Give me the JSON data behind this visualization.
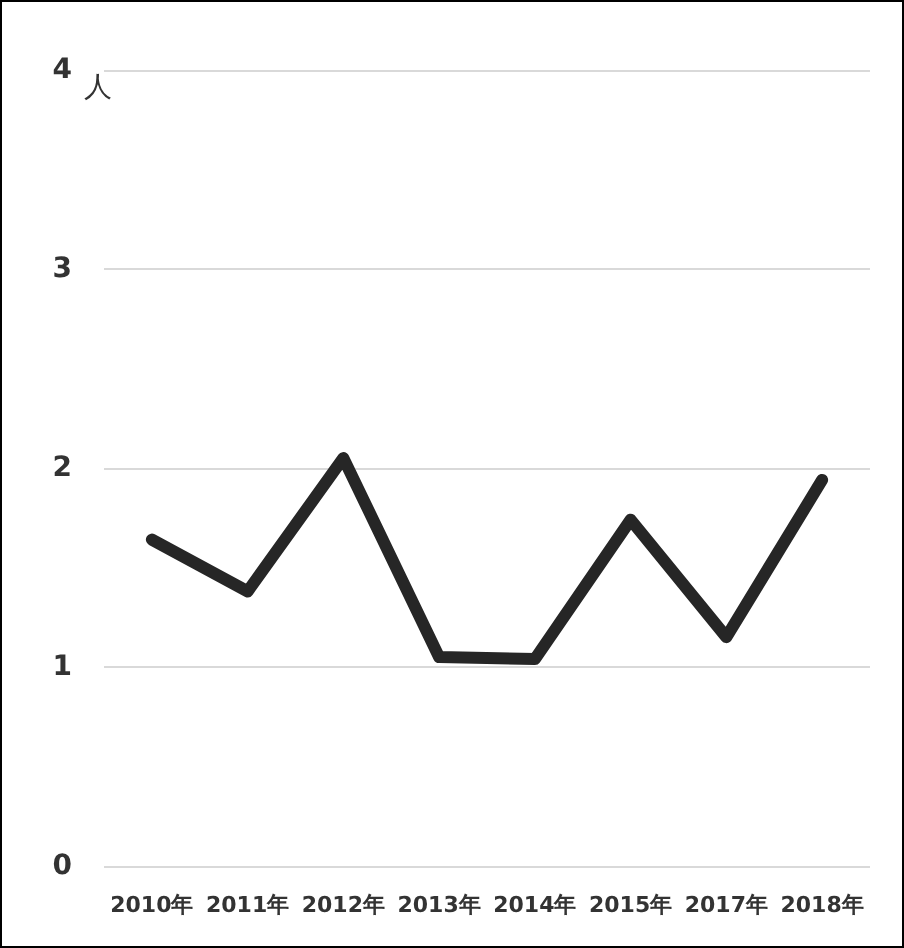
{
  "chart_data": {
    "type": "line",
    "ylabel": "人",
    "categories": [
      "2010年",
      "2011年",
      "2012年",
      "2013年",
      "2014年",
      "2015年",
      "2017年",
      "2018年"
    ],
    "series": [
      {
        "color": "#262626",
        "values": [
          1.64,
          1.38,
          2.05,
          1.05,
          1.04,
          1.74,
          1.15,
          1.94
        ]
      }
    ],
    "ylim": [
      0,
      4
    ],
    "yticks": [
      0,
      1,
      2,
      3,
      4
    ],
    "grid": "y",
    "marker": "none",
    "line_style": "solid"
  }
}
